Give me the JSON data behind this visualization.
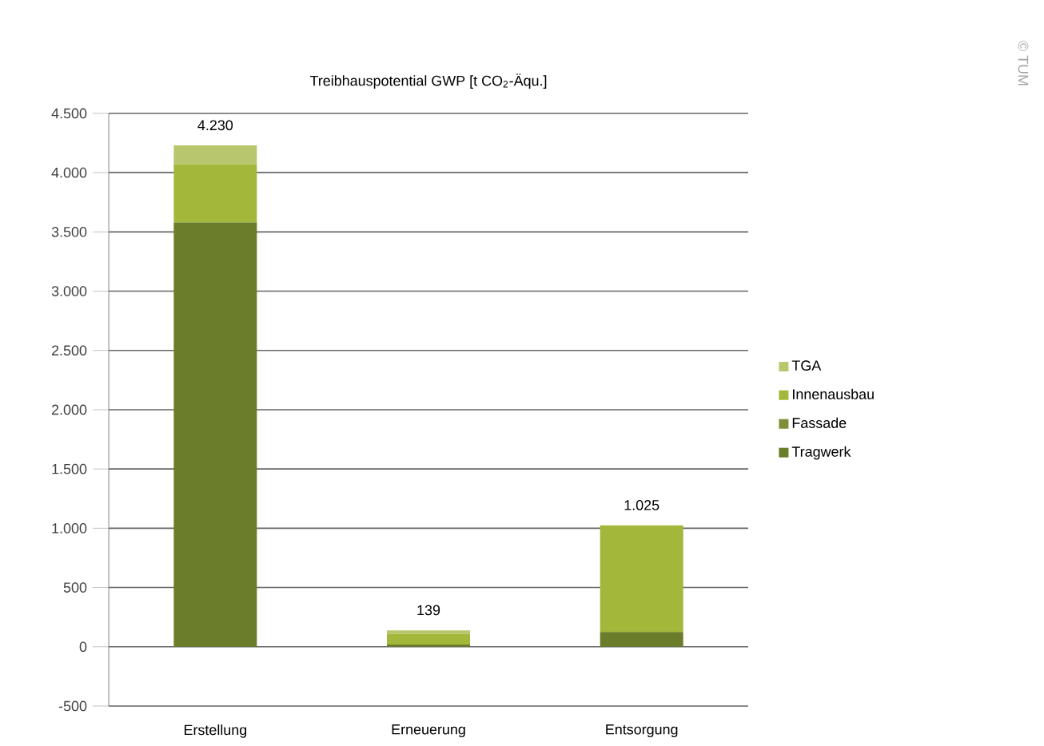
{
  "chart_data": {
    "type": "bar",
    "stacked": true,
    "title": "Treibhauspotential GWP [t CO$_{2}$-Äqu.]",
    "categories": [
      "Erstellung",
      "Erneuerung",
      "Entsorgung"
    ],
    "series": [
      {
        "name": "Tragwerk",
        "color": "#6b7d2a",
        "values": [
          3580,
          19,
          125
        ]
      },
      {
        "name": "Fassade",
        "color": "#7f8f38",
        "values": [
          0,
          0,
          0
        ]
      },
      {
        "name": "Innenausbau",
        "color": "#a3b83a",
        "values": [
          490,
          90,
          900
        ]
      },
      {
        "name": "TGA",
        "color": "#b8c76e",
        "values": [
          160,
          30,
          0
        ]
      }
    ],
    "totals": [
      "4.230",
      "139",
      "1.025"
    ],
    "ylim": [
      -500,
      4500
    ],
    "yticks": [
      {
        "value": -500,
        "label": "-500"
      },
      0,
      500,
      {
        "value": 1000,
        "label": "1.000"
      },
      {
        "value": 1500,
        "label": "1.500"
      },
      {
        "value": 2000,
        "label": "2.000"
      },
      {
        "value": 2500,
        "label": "2.500"
      },
      {
        "value": 3000,
        "label": "3.000"
      },
      {
        "value": 3500,
        "label": "3.500"
      },
      {
        "value": 4000,
        "label": "4.000"
      },
      {
        "value": 4500,
        "label": "4.500"
      }
    ],
    "grid": "y",
    "legend": "right",
    "annotations": [
      "© TUM"
    ]
  }
}
